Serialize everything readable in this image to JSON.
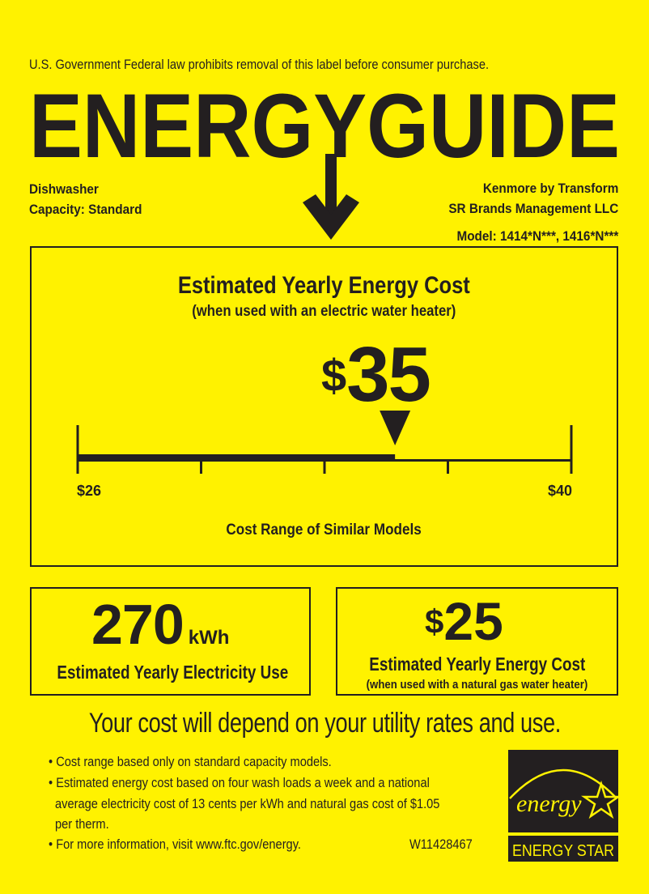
{
  "header": {
    "notice": "U.S. Government  Federal law prohibits removal of this label before consumer purchase.",
    "logo_text": "ENERGYGUIDE",
    "appliance": "Dishwasher",
    "capacity": "Capacity: Standard",
    "manufacturer_line1": "Kenmore by Transform",
    "manufacturer_line2": "SR Brands Management LLC",
    "model": "Model: 1414*N***, 1416*N***"
  },
  "cost_box": {
    "title": "Estimated Yearly Energy Cost",
    "subtitle": "(when used with an electric water heater)",
    "currency": "$",
    "value": "35",
    "range_min_label": "$26",
    "range_max_label": "$40",
    "range_caption": "Cost Range of Similar Models",
    "scale": {
      "min": 26,
      "max": 40,
      "value": 35
    }
  },
  "electricity_box": {
    "value": "270",
    "unit": "kWh",
    "label": "Estimated Yearly Electricity Use"
  },
  "gas_box": {
    "currency": "$",
    "value": "25",
    "label": "Estimated Yearly Energy Cost",
    "sublabel": "(when used with a natural gas water heater)"
  },
  "tagline": "Your cost will depend on your utility rates and use.",
  "notes": [
    "Cost range based only on standard capacity models.",
    "Estimated energy cost based on four wash loads a week and a national",
    "average electricity cost of 13 cents per kWh and natural gas cost of $1.05",
    "per therm.",
    "For more information, visit www.ftc.gov/energy."
  ],
  "label_code": "W11428467",
  "energy_star": {
    "script": "energy",
    "label": "ENERGY STAR"
  },
  "colors": {
    "background": "#fff200",
    "ink": "#231f20"
  }
}
